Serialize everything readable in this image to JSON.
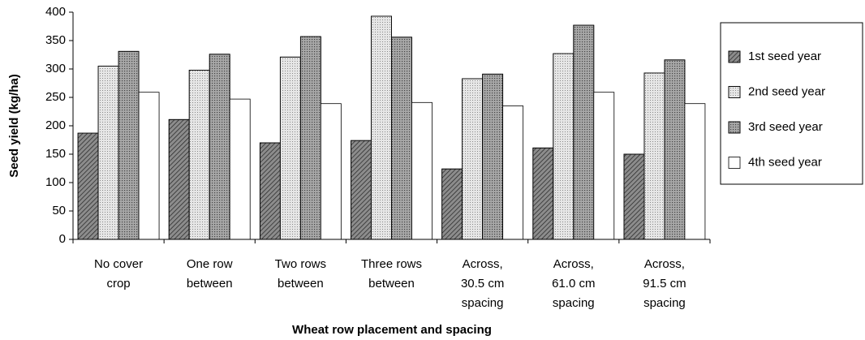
{
  "chart_data": {
    "type": "bar",
    "y_label": "Seed yield (kg/ha)",
    "x_label": "Wheat row placement and spacing",
    "categories": [
      "No cover\ncrop",
      "One row\nbetween",
      "Two rows\nbetween",
      "Three rows\nbetween",
      "Across,\n30.5 cm\nspacing",
      "Across,\n61.0 cm\nspacing",
      "Across,\n91.5 cm\nspacing"
    ],
    "series": [
      {
        "name": "1st seed year",
        "color": "#8c8c8c",
        "values": [
          187,
          211,
          170,
          174,
          124,
          161,
          150
        ]
      },
      {
        "name": "2nd seed year",
        "color": "#e6e6e6",
        "values": [
          305,
          298,
          321,
          393,
          283,
          327,
          293
        ]
      },
      {
        "name": "3rd seed year",
        "color": "#a8a8a8",
        "values": [
          331,
          326,
          357,
          356,
          291,
          377,
          316
        ]
      },
      {
        "name": "4th seed year",
        "color": "#ffffff",
        "values": [
          259,
          247,
          239,
          241,
          235,
          259,
          239
        ]
      }
    ],
    "ylim": [
      0,
      400
    ],
    "yticks": [
      0,
      50,
      100,
      150,
      200,
      250,
      300,
      350,
      400
    ],
    "legend": "right"
  }
}
